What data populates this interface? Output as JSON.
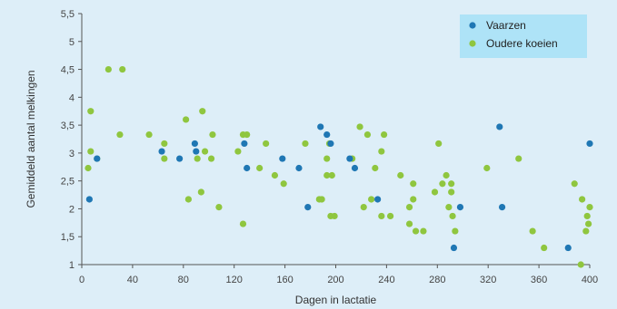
{
  "chart_data": {
    "type": "scatter",
    "xlabel": "Dagen in lactatie",
    "ylabel": "Gemiddeld aantal melkingen",
    "xlim": [
      0,
      400
    ],
    "ylim": [
      1,
      5.5
    ],
    "xticks": [
      0,
      40,
      80,
      120,
      160,
      200,
      240,
      280,
      320,
      360,
      400
    ],
    "yticks": [
      "1",
      "1,5",
      "2",
      "2,5",
      "3",
      "3,5",
      "4",
      "4,5",
      "5",
      "5,5"
    ],
    "grid": false,
    "legend_position": "top-right",
    "series": [
      {
        "name": "Vaarzen",
        "color": "#1f77b4",
        "points": [
          [
            6,
            2.17
          ],
          [
            12,
            2.9
          ],
          [
            63,
            3.03
          ],
          [
            77,
            2.9
          ],
          [
            89,
            3.17
          ],
          [
            90,
            3.03
          ],
          [
            128,
            3.17
          ],
          [
            130,
            2.73
          ],
          [
            158,
            2.9
          ],
          [
            171,
            2.73
          ],
          [
            178,
            2.03
          ],
          [
            188,
            3.47
          ],
          [
            193,
            3.33
          ],
          [
            196,
            3.17
          ],
          [
            211,
            2.9
          ],
          [
            215,
            2.73
          ],
          [
            233,
            2.17
          ],
          [
            293,
            1.3
          ],
          [
            298,
            2.03
          ],
          [
            329,
            3.47
          ],
          [
            331,
            2.03
          ],
          [
            383,
            1.3
          ],
          [
            400,
            3.17
          ]
        ]
      },
      {
        "name": "Oudere koeien",
        "color": "#8fc63f",
        "points": [
          [
            5,
            2.73
          ],
          [
            7,
            3.75
          ],
          [
            7,
            3.03
          ],
          [
            12,
            2.9
          ],
          [
            21,
            4.5
          ],
          [
            32,
            4.5
          ],
          [
            30,
            3.33
          ],
          [
            53,
            3.33
          ],
          [
            65,
            3.17
          ],
          [
            65,
            2.9
          ],
          [
            82,
            3.6
          ],
          [
            84,
            2.17
          ],
          [
            91,
            2.9
          ],
          [
            94,
            2.3
          ],
          [
            95,
            3.75
          ],
          [
            97,
            3.03
          ],
          [
            102,
            2.9
          ],
          [
            103,
            3.33
          ],
          [
            108,
            2.03
          ],
          [
            123,
            3.03
          ],
          [
            127,
            3.33
          ],
          [
            127,
            1.73
          ],
          [
            130,
            3.33
          ],
          [
            140,
            2.73
          ],
          [
            145,
            3.17
          ],
          [
            152,
            2.6
          ],
          [
            159,
            2.45
          ],
          [
            176,
            3.17
          ],
          [
            187,
            2.17
          ],
          [
            189,
            2.17
          ],
          [
            193,
            2.6
          ],
          [
            193,
            2.9
          ],
          [
            195,
            3.17
          ],
          [
            196,
            1.87
          ],
          [
            197,
            2.6
          ],
          [
            199,
            1.87
          ],
          [
            213,
            2.9
          ],
          [
            219,
            3.47
          ],
          [
            222,
            2.03
          ],
          [
            225,
            3.33
          ],
          [
            228,
            2.17
          ],
          [
            231,
            2.73
          ],
          [
            236,
            3.03
          ],
          [
            236,
            1.87
          ],
          [
            238,
            3.33
          ],
          [
            243,
            1.87
          ],
          [
            251,
            2.6
          ],
          [
            258,
            2.03
          ],
          [
            258,
            1.73
          ],
          [
            261,
            2.45
          ],
          [
            261,
            2.17
          ],
          [
            263,
            1.6
          ],
          [
            269,
            1.6
          ],
          [
            278,
            2.3
          ],
          [
            281,
            3.17
          ],
          [
            284,
            2.45
          ],
          [
            287,
            2.6
          ],
          [
            289,
            2.03
          ],
          [
            291,
            2.45
          ],
          [
            291,
            2.3
          ],
          [
            292,
            1.87
          ],
          [
            294,
            1.6
          ],
          [
            319,
            2.73
          ],
          [
            344,
            2.9
          ],
          [
            355,
            1.6
          ],
          [
            364,
            1.3
          ],
          [
            388,
            2.45
          ],
          [
            393,
            1.0
          ],
          [
            394,
            2.17
          ],
          [
            397,
            1.6
          ],
          [
            398,
            1.87
          ],
          [
            399,
            1.73
          ],
          [
            400,
            2.03
          ]
        ]
      }
    ]
  }
}
